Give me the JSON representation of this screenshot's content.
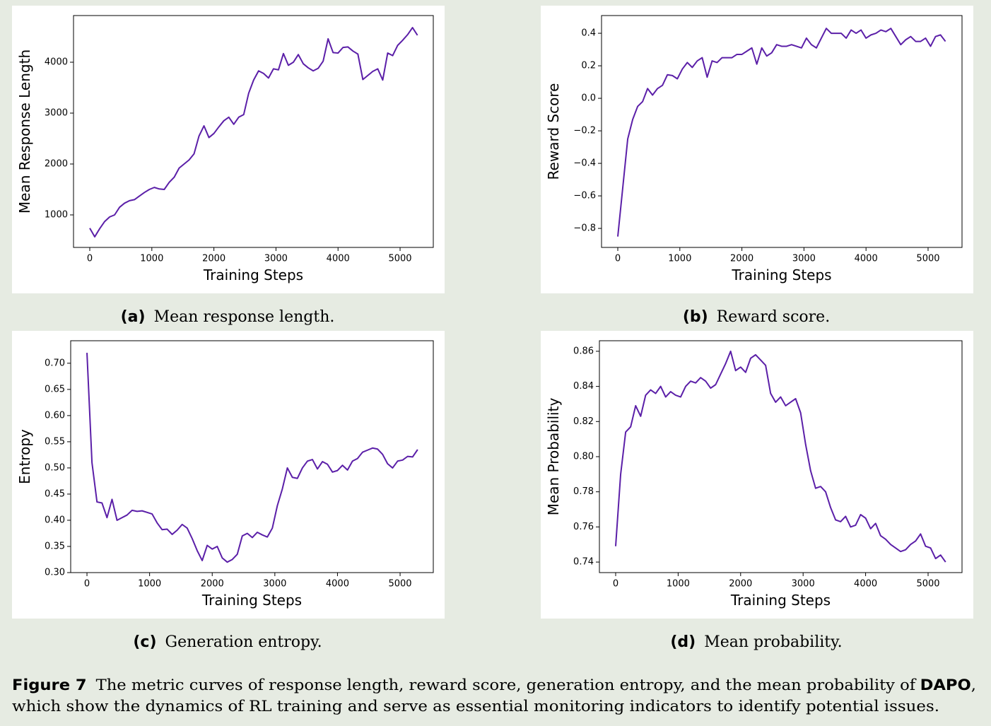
{
  "chart_data": [
    {
      "type": "line",
      "xlabel": "Training Steps",
      "ylabel": "Mean Response Length",
      "color": "#5b1fa8",
      "subcaption": {
        "label": "(a)",
        "text": "Mean response length."
      },
      "x": [
        0,
        80,
        160,
        240,
        320,
        400,
        480,
        560,
        640,
        720,
        800,
        880,
        960,
        1040,
        1120,
        1200,
        1280,
        1360,
        1440,
        1520,
        1600,
        1680,
        1760,
        1840,
        1920,
        2000,
        2080,
        2160,
        2240,
        2320,
        2400,
        2480,
        2560,
        2640,
        2720,
        2800,
        2880,
        2960,
        3040,
        3120,
        3200,
        3280,
        3360,
        3440,
        3520,
        3600,
        3680,
        3760,
        3840,
        3920,
        4000,
        4080,
        4160,
        4240,
        4320,
        4400,
        4480,
        4560,
        4640,
        4720,
        4800,
        4880,
        4960,
        5040,
        5120,
        5200,
        5280
      ],
      "values": [
        740,
        570,
        730,
        870,
        960,
        1000,
        1150,
        1230,
        1280,
        1300,
        1370,
        1440,
        1500,
        1540,
        1510,
        1500,
        1640,
        1740,
        1920,
        2000,
        2080,
        2200,
        2550,
        2750,
        2520,
        2600,
        2730,
        2850,
        2920,
        2780,
        2920,
        2970,
        3390,
        3650,
        3830,
        3780,
        3690,
        3870,
        3850,
        4170,
        3940,
        4000,
        4150,
        3970,
        3890,
        3830,
        3880,
        4020,
        4460,
        4190,
        4180,
        4290,
        4300,
        4220,
        4160,
        3660,
        3740,
        3820,
        3870,
        3650,
        4180,
        4130,
        4330,
        4430,
        4540,
        4680,
        4530
      ],
      "xlim": [
        -262,
        5535
      ],
      "ylim": [
        361,
        4917
      ],
      "xticks": [
        0,
        1000,
        2000,
        3000,
        4000,
        5000
      ],
      "yticks": [
        1000,
        2000,
        3000,
        4000
      ]
    },
    {
      "type": "line",
      "xlabel": "Training Steps",
      "ylabel": "Reward Score",
      "color": "#5b1fa8",
      "subcaption": {
        "label": "(b)",
        "text": "Reward score."
      },
      "x": [
        0,
        80,
        160,
        240,
        320,
        400,
        480,
        560,
        640,
        720,
        800,
        880,
        960,
        1040,
        1120,
        1200,
        1280,
        1360,
        1440,
        1520,
        1600,
        1680,
        1760,
        1840,
        1920,
        2000,
        2080,
        2160,
        2240,
        2320,
        2400,
        2480,
        2560,
        2640,
        2720,
        2800,
        2880,
        2960,
        3040,
        3120,
        3200,
        3280,
        3360,
        3440,
        3520,
        3600,
        3680,
        3760,
        3840,
        3920,
        4000,
        4080,
        4160,
        4240,
        4320,
        4400,
        4480,
        4560,
        4640,
        4720,
        4800,
        4880,
        4960,
        5040,
        5120,
        5200,
        5280
      ],
      "values": [
        -0.85,
        -0.55,
        -0.25,
        -0.13,
        -0.05,
        -0.02,
        0.06,
        0.02,
        0.06,
        0.08,
        0.145,
        0.14,
        0.12,
        0.18,
        0.22,
        0.19,
        0.23,
        0.25,
        0.13,
        0.23,
        0.22,
        0.25,
        0.25,
        0.25,
        0.27,
        0.27,
        0.29,
        0.31,
        0.21,
        0.31,
        0.26,
        0.28,
        0.33,
        0.32,
        0.32,
        0.33,
        0.32,
        0.31,
        0.37,
        0.33,
        0.31,
        0.37,
        0.43,
        0.4,
        0.4,
        0.4,
        0.37,
        0.42,
        0.4,
        0.42,
        0.37,
        0.39,
        0.4,
        0.42,
        0.41,
        0.43,
        0.38,
        0.33,
        0.36,
        0.38,
        0.35,
        0.35,
        0.37,
        0.32,
        0.38,
        0.39,
        0.35
      ],
      "xlim": [
        -262,
        5547
      ],
      "ylim": [
        -0.917,
        0.509
      ],
      "xticks": [
        0,
        1000,
        2000,
        3000,
        4000,
        5000
      ],
      "yticks": [
        {
          "value": -0.8,
          "label": "−0.8"
        },
        {
          "value": -0.6,
          "label": "−0.6"
        },
        {
          "value": -0.4,
          "label": "−0.4"
        },
        {
          "value": -0.2,
          "label": "−0.2"
        },
        {
          "value": 0,
          "label": "0.0"
        },
        0.2,
        0.4
      ]
    },
    {
      "type": "line",
      "xlabel": "Training Steps",
      "ylabel": "Entropy",
      "color": "#5b1fa8",
      "subcaption": {
        "label": "(c)",
        "text": "Generation entropy."
      },
      "x": [
        0,
        80,
        160,
        240,
        320,
        400,
        480,
        560,
        640,
        720,
        800,
        880,
        960,
        1040,
        1120,
        1200,
        1280,
        1360,
        1440,
        1520,
        1600,
        1680,
        1760,
        1840,
        1920,
        2000,
        2080,
        2160,
        2240,
        2320,
        2400,
        2480,
        2560,
        2640,
        2720,
        2800,
        2880,
        2960,
        3040,
        3120,
        3200,
        3280,
        3360,
        3440,
        3520,
        3600,
        3680,
        3760,
        3840,
        3920,
        4000,
        4080,
        4160,
        4240,
        4320,
        4400,
        4480,
        4560,
        4640,
        4720,
        4800,
        4880,
        4960,
        5040,
        5120,
        5200,
        5280
      ],
      "values": [
        0.72,
        0.51,
        0.435,
        0.433,
        0.405,
        0.44,
        0.4,
        0.405,
        0.41,
        0.419,
        0.417,
        0.418,
        0.415,
        0.412,
        0.395,
        0.382,
        0.383,
        0.373,
        0.381,
        0.392,
        0.385,
        0.365,
        0.342,
        0.323,
        0.352,
        0.345,
        0.35,
        0.328,
        0.32,
        0.325,
        0.335,
        0.37,
        0.375,
        0.367,
        0.377,
        0.372,
        0.368,
        0.385,
        0.428,
        0.46,
        0.5,
        0.482,
        0.48,
        0.5,
        0.513,
        0.516,
        0.498,
        0.512,
        0.507,
        0.492,
        0.495,
        0.505,
        0.496,
        0.513,
        0.518,
        0.53,
        0.534,
        0.538,
        0.536,
        0.526,
        0.508,
        0.5,
        0.513,
        0.515,
        0.522,
        0.521,
        0.535
      ],
      "xlim": [
        -260,
        5530
      ],
      "ylim": [
        0.3,
        0.743
      ],
      "xticks": [
        0,
        1000,
        2000,
        3000,
        4000,
        5000
      ],
      "yticks": [
        {
          "value": 0.3,
          "label": "0.30"
        },
        0.35,
        {
          "value": 0.4,
          "label": "0.40"
        },
        0.45,
        {
          "value": 0.5,
          "label": "0.50"
        },
        0.55,
        {
          "value": 0.6,
          "label": "0.60"
        },
        0.65,
        {
          "value": 0.7,
          "label": "0.70"
        }
      ]
    },
    {
      "type": "line",
      "xlabel": "Training Steps",
      "ylabel": "Mean Probability",
      "color": "#5b1fa8",
      "subcaption": {
        "label": "(d)",
        "text": "Mean probability."
      },
      "x": [
        0,
        80,
        160,
        240,
        320,
        400,
        480,
        560,
        640,
        720,
        800,
        880,
        960,
        1040,
        1120,
        1200,
        1280,
        1360,
        1440,
        1520,
        1600,
        1680,
        1760,
        1840,
        1920,
        2000,
        2080,
        2160,
        2240,
        2320,
        2400,
        2480,
        2560,
        2640,
        2720,
        2800,
        2880,
        2960,
        3040,
        3120,
        3200,
        3280,
        3360,
        3440,
        3520,
        3600,
        3680,
        3760,
        3840,
        3920,
        4000,
        4080,
        4160,
        4240,
        4320,
        4400,
        4480,
        4560,
        4640,
        4720,
        4800,
        4880,
        4960,
        5040,
        5120,
        5200,
        5280
      ],
      "values": [
        0.749,
        0.79,
        0.814,
        0.817,
        0.829,
        0.823,
        0.835,
        0.838,
        0.836,
        0.84,
        0.834,
        0.837,
        0.835,
        0.834,
        0.84,
        0.843,
        0.842,
        0.845,
        0.843,
        0.839,
        0.841,
        0.847,
        0.853,
        0.86,
        0.849,
        0.851,
        0.848,
        0.856,
        0.858,
        0.855,
        0.852,
        0.836,
        0.831,
        0.834,
        0.829,
        0.831,
        0.833,
        0.825,
        0.807,
        0.792,
        0.782,
        0.783,
        0.78,
        0.771,
        0.764,
        0.763,
        0.766,
        0.76,
        0.761,
        0.767,
        0.765,
        0.759,
        0.762,
        0.755,
        0.753,
        0.75,
        0.748,
        0.746,
        0.747,
        0.75,
        0.752,
        0.756,
        0.749,
        0.748,
        0.742,
        0.744,
        0.74
      ],
      "xlim": [
        -260,
        5543
      ],
      "ylim": [
        0.734,
        0.866
      ],
      "xticks": [
        0,
        1000,
        2000,
        3000,
        4000,
        5000
      ],
      "yticks": [
        0.74,
        0.76,
        0.78,
        {
          "value": 0.8,
          "label": "0.80"
        },
        0.82,
        0.84,
        0.86
      ]
    }
  ],
  "figure_caption": {
    "label": "Figure 7",
    "text": "The metric curves of response length, reward score, generation entropy, and the mean probability of",
    "emphasis": "DAPO",
    "punctuation": ",",
    "line2": "which show the dynamics of RL training and serve as essential monitoring indicators to identify potential issues."
  }
}
